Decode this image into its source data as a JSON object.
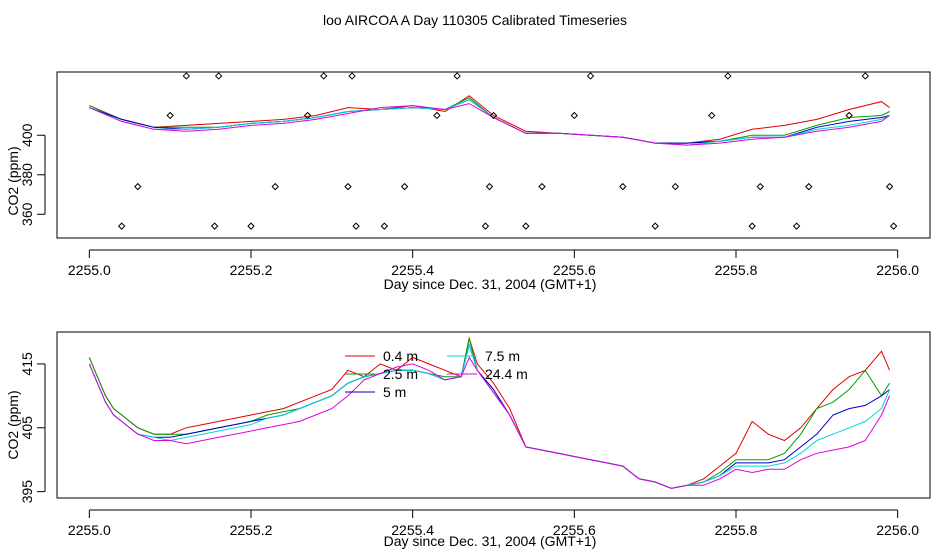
{
  "title": "loo AIRCOA A  Day 110305  Calibrated Timeseries",
  "colors": {
    "0.4 m": "#e00000",
    "2.5 m": "#00a000",
    "5 m": "#0000c8",
    "7.5 m": "#00d8d8",
    "24.4 m": "#e000e0",
    "axes": "#000000"
  },
  "chart_data": [
    {
      "type": "line",
      "xlabel": "Day since Dec. 31, 2004 (GMT+1)",
      "ylabel": "CO2 (ppm)",
      "xlim": [
        2254.96,
        2256.04
      ],
      "ylim": [
        348,
        432
      ],
      "xticks": [
        "2255.0",
        "2255.2",
        "2255.4",
        "2255.6",
        "2255.8",
        "2256.0"
      ],
      "yticks": [
        "360",
        "380",
        "400"
      ],
      "xtick_values": [
        2255.0,
        2255.2,
        2255.4,
        2255.6,
        2255.8,
        2256.0
      ],
      "ytick_values": [
        360,
        380,
        400
      ],
      "grid": false,
      "x": [
        2255.0,
        2255.04,
        2255.08,
        2255.12,
        2255.16,
        2255.2,
        2255.24,
        2255.28,
        2255.32,
        2255.36,
        2255.4,
        2255.44,
        2255.47,
        2255.5,
        2255.54,
        2255.58,
        2255.62,
        2255.66,
        2255.7,
        2255.74,
        2255.78,
        2255.82,
        2255.86,
        2255.9,
        2255.94,
        2255.98,
        2255.99
      ],
      "series": [
        {
          "name": "0.4 m",
          "values": [
            415,
            408,
            404,
            405,
            406,
            407,
            408,
            410,
            414,
            413,
            415,
            412,
            420,
            410,
            402,
            401,
            400,
            399,
            396,
            396,
            398,
            403,
            405,
            408,
            413,
            417,
            414
          ]
        },
        {
          "name": "2.5 m",
          "values": [
            415,
            408,
            404,
            404,
            404,
            406,
            407,
            409,
            412,
            413,
            414,
            413,
            419,
            409,
            401,
            401,
            400,
            399,
            396,
            396,
            397,
            400,
            400,
            405,
            409,
            410,
            412
          ]
        },
        {
          "name": "5 m",
          "values": [
            414,
            408,
            404,
            403,
            404,
            406,
            407,
            409,
            412,
            413,
            414,
            413,
            418,
            409,
            401,
            401,
            400,
            399,
            396,
            396,
            397,
            399,
            399,
            404,
            407,
            409,
            410
          ]
        },
        {
          "name": "7.5 m",
          "values": [
            414,
            407,
            403,
            403,
            404,
            406,
            407,
            409,
            412,
            413,
            414,
            413,
            418,
            409,
            401,
            401,
            400,
            399,
            396,
            395,
            397,
            399,
            399,
            403,
            405,
            408,
            410
          ]
        },
        {
          "name": "24.4 m",
          "values": [
            414,
            407,
            403,
            402,
            403,
            405,
            406,
            408,
            411,
            414,
            415,
            413,
            416,
            409,
            401,
            401,
            400,
            399,
            396,
            395,
            396,
            398,
            399,
            402,
            404,
            407,
            410
          ]
        }
      ],
      "markers": {
        "x": [
          2255.04,
          2255.06,
          2255.1,
          2255.12,
          2255.155,
          2255.16,
          2255.2,
          2255.23,
          2255.27,
          2255.29,
          2255.32,
          2255.325,
          2255.33,
          2255.365,
          2255.39,
          2255.43,
          2255.455,
          2255.49,
          2255.495,
          2255.5,
          2255.54,
          2255.56,
          2255.6,
          2255.62,
          2255.66,
          2255.7,
          2255.725,
          2255.77,
          2255.79,
          2255.82,
          2255.83,
          2255.875,
          2255.89,
          2255.94,
          2255.96,
          2255.99,
          2255.995
        ],
        "y": [
          354,
          374,
          410,
          430,
          354,
          430,
          354,
          374,
          410,
          430,
          374,
          430,
          354,
          354,
          374,
          410,
          430,
          354,
          374,
          410,
          354,
          374,
          410,
          430,
          374,
          354,
          374,
          410,
          430,
          354,
          374,
          354,
          374,
          410,
          430,
          374,
          354
        ]
      }
    },
    {
      "type": "line",
      "xlabel": "Day since Dec. 31, 2004 (GMT+1)",
      "ylabel": "CO2 (ppm)",
      "xlim": [
        2254.96,
        2256.04
      ],
      "ylim": [
        394,
        420
      ],
      "xticks": [
        "2255.0",
        "2255.2",
        "2255.4",
        "2255.6",
        "2255.8",
        "2256.0"
      ],
      "yticks": [
        "395",
        "405",
        "415"
      ],
      "xtick_values": [
        2255.0,
        2255.2,
        2255.4,
        2255.6,
        2255.8,
        2256.0
      ],
      "ytick_values": [
        395,
        405,
        415
      ],
      "grid": false,
      "legend": [
        "0.4 m",
        "2.5 m",
        "5 m",
        "7.5 m",
        "24.4 m"
      ],
      "x": [
        2255.0,
        2255.01,
        2255.02,
        2255.03,
        2255.04,
        2255.06,
        2255.08,
        2255.1,
        2255.12,
        2255.14,
        2255.16,
        2255.18,
        2255.2,
        2255.22,
        2255.24,
        2255.26,
        2255.28,
        2255.3,
        2255.32,
        2255.34,
        2255.36,
        2255.38,
        2255.4,
        2255.42,
        2255.44,
        2255.46,
        2255.47,
        2255.48,
        2255.5,
        2255.52,
        2255.54,
        2255.56,
        2255.58,
        2255.6,
        2255.62,
        2255.64,
        2255.66,
        2255.68,
        2255.7,
        2255.72,
        2255.74,
        2255.76,
        2255.78,
        2255.8,
        2255.82,
        2255.84,
        2255.86,
        2255.88,
        2255.9,
        2255.92,
        2255.94,
        2255.96,
        2255.98,
        2255.99
      ],
      "series": [
        {
          "name": "0.4 m",
          "values": [
            416,
            413,
            410,
            408,
            407,
            405,
            404,
            404,
            405,
            405.5,
            406,
            406.5,
            407,
            407.5,
            408,
            409,
            410,
            411,
            414,
            413,
            415,
            414,
            416,
            415,
            414,
            413,
            419,
            415,
            412,
            408,
            402,
            401.5,
            401,
            400.5,
            400,
            399.5,
            399,
            397,
            396.5,
            395.5,
            396,
            397,
            399,
            401,
            406,
            404,
            403,
            405,
            408,
            411,
            413,
            414,
            417,
            414
          ]
        },
        {
          "name": "2.5 m",
          "values": [
            416,
            413,
            410,
            408,
            407,
            405,
            404,
            404,
            404,
            404.5,
            405,
            405.5,
            406,
            407,
            407.5,
            408,
            409,
            410,
            412,
            413,
            413.5,
            414,
            414,
            413.5,
            413,
            413,
            419,
            414,
            411,
            407,
            402,
            401.5,
            401,
            400.5,
            400,
            399.5,
            399,
            397,
            396.5,
            395.5,
            396,
            396.5,
            398,
            400,
            400,
            400,
            401,
            404,
            408,
            409,
            411,
            414,
            410,
            412
          ]
        },
        {
          "name": "5 m",
          "values": [
            415,
            412,
            409,
            407,
            406,
            404,
            403.5,
            403.5,
            404,
            404.5,
            405,
            405.5,
            406,
            406.5,
            407,
            408,
            409,
            410,
            412,
            413,
            413.5,
            414,
            414,
            413.5,
            412.5,
            413,
            418,
            414,
            411,
            407,
            402,
            401.5,
            401,
            400.5,
            400,
            399.5,
            399,
            397,
            396.5,
            395.5,
            396,
            396.5,
            397.5,
            399.5,
            399.5,
            399.5,
            400,
            402,
            404,
            407,
            408,
            408.5,
            410,
            411
          ]
        },
        {
          "name": "7.5 m",
          "values": [
            415,
            412,
            409,
            407,
            406,
            404,
            403.5,
            403,
            403.5,
            404,
            404.5,
            405,
            405.5,
            406.5,
            407,
            408,
            409,
            410,
            412,
            413,
            413.5,
            414,
            414,
            413.5,
            412.5,
            413,
            418,
            414,
            410.5,
            407,
            402,
            401.5,
            401,
            400.5,
            400,
            399.5,
            399,
            397,
            396.5,
            395.5,
            396,
            396.5,
            397.5,
            399,
            399,
            399,
            399.5,
            401,
            403,
            404,
            405,
            406,
            408,
            411
          ]
        },
        {
          "name": "24.4 m",
          "values": [
            415,
            412,
            409,
            407,
            406,
            404,
            403,
            403,
            402.5,
            403,
            403.5,
            404,
            404.5,
            405,
            405.5,
            406,
            407,
            408,
            410,
            412.5,
            413.5,
            414.5,
            415,
            414,
            412.5,
            413,
            416,
            414,
            410.5,
            407,
            402,
            401.5,
            401,
            400.5,
            400,
            399.5,
            399,
            397,
            396.5,
            395.5,
            396,
            396,
            397,
            398.5,
            398,
            398.5,
            398.5,
            400,
            401,
            401.5,
            402,
            403,
            407,
            410
          ]
        }
      ]
    }
  ]
}
